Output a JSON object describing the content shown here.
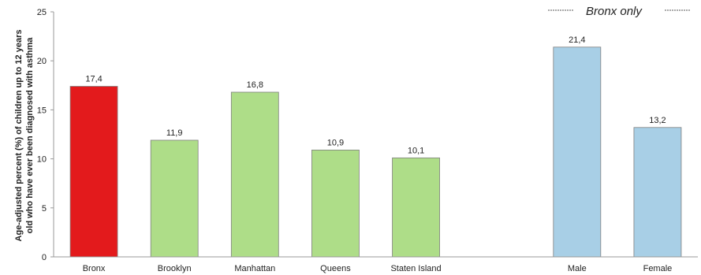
{
  "chart_data": {
    "type": "bar",
    "ylabel_lines": [
      "Age-adjusted percent (%) of children up to 12 years",
      "old who have ever been diagnosed with asthma"
    ],
    "ylim": [
      0,
      25
    ],
    "yticks": [
      0,
      5,
      10,
      15,
      20,
      25
    ],
    "grid": false,
    "annotation": "Bronx only",
    "bars": [
      {
        "category": "Bronx",
        "value": 17.4,
        "label": "17,4",
        "color": "#e31a1c",
        "slot": 0
      },
      {
        "category": "Brooklyn",
        "value": 11.9,
        "label": "11,9",
        "color": "#aedd88",
        "slot": 1
      },
      {
        "category": "Manhattan",
        "value": 16.8,
        "label": "16,8",
        "color": "#aedd88",
        "slot": 2
      },
      {
        "category": "Queens",
        "value": 10.9,
        "label": "10,9",
        "color": "#aedd88",
        "slot": 3
      },
      {
        "category": "Staten Island",
        "value": 10.1,
        "label": "10,1",
        "color": "#aedd88",
        "slot": 4
      },
      {
        "category": "Male",
        "value": 21.4,
        "label": "21,4",
        "color": "#a8cfe6",
        "slot": 6
      },
      {
        "category": "Female",
        "value": 13.2,
        "label": "13,2",
        "color": "#a8cfe6",
        "slot": 7
      }
    ]
  }
}
